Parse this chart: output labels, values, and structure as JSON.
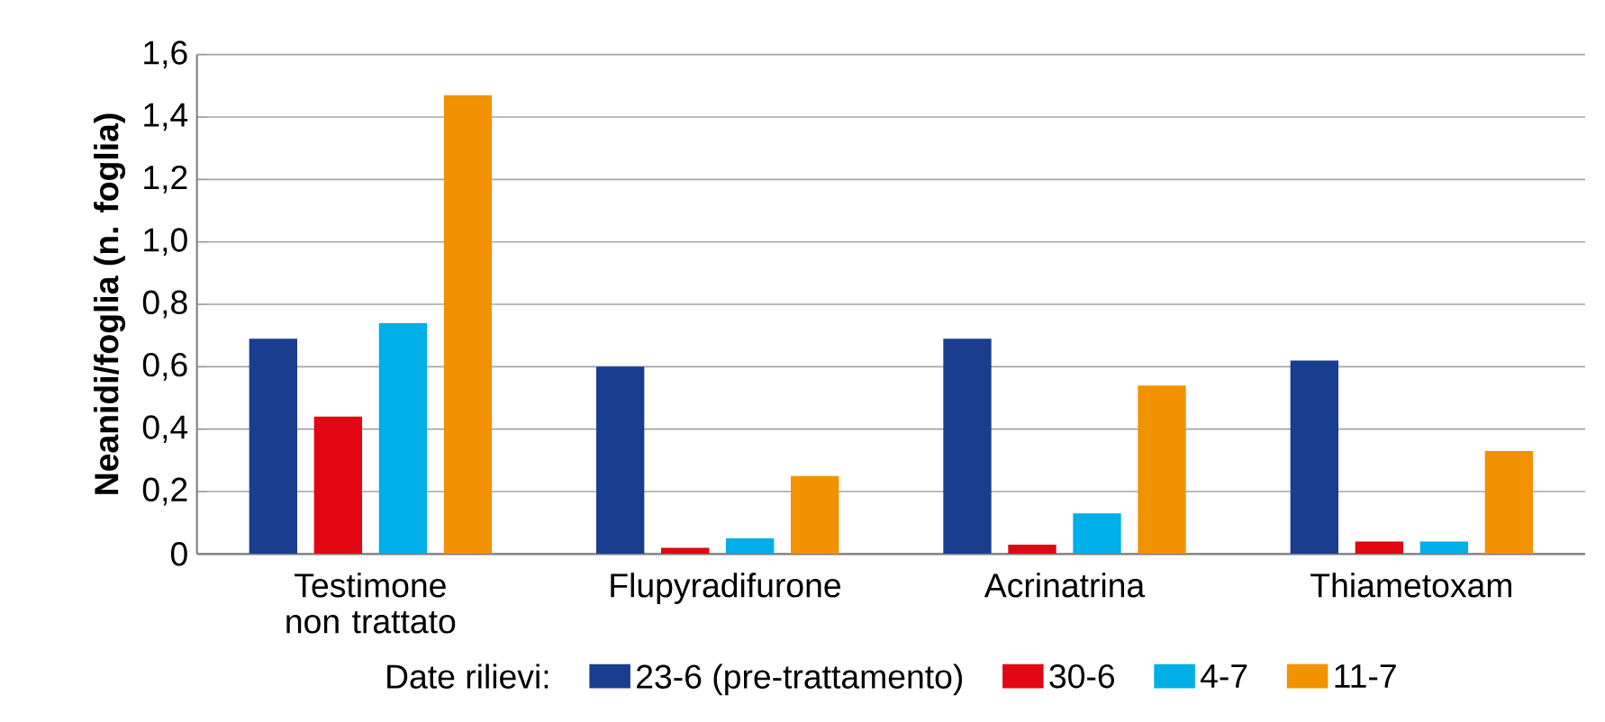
{
  "chart_data": {
    "type": "bar",
    "ylabel": "Neanidi/foglia (n. foglia)",
    "legend_title": "Date rilievi:",
    "categories": [
      "Testimone non trattato",
      "Flupyradifurone",
      "Acrinatrina",
      "Thiametoxam"
    ],
    "series": [
      {
        "name": "23-6 (pre-trattamento)",
        "color": "#1a3e8f",
        "values": [
          0.69,
          0.6,
          0.69,
          0.62
        ]
      },
      {
        "name": "30-6",
        "color": "#e30613",
        "values": [
          0.44,
          0.02,
          0.03,
          0.04
        ]
      },
      {
        "name": "4-7",
        "color": "#00aee8",
        "values": [
          0.74,
          0.05,
          0.13,
          0.04
        ]
      },
      {
        "name": "11-7",
        "color": "#f39200",
        "values": [
          1.47,
          0.25,
          0.54,
          0.33
        ]
      }
    ],
    "ylim": [
      0,
      1.6
    ],
    "yticks": [
      0,
      {
        "value": 0.2,
        "label": "0,2"
      },
      {
        "value": 0.4,
        "label": "0,4"
      },
      {
        "value": 0.6,
        "label": "0,6"
      },
      {
        "value": 0.8,
        "label": "0,8"
      },
      {
        "value": 1.0,
        "label": "1,0"
      },
      {
        "value": 1.2,
        "label": "1,2"
      },
      {
        "value": 1.4,
        "label": "1,4"
      },
      {
        "value": 1.6,
        "label": "1,6"
      }
    ],
    "grid": "y",
    "legend": "bottom"
  }
}
